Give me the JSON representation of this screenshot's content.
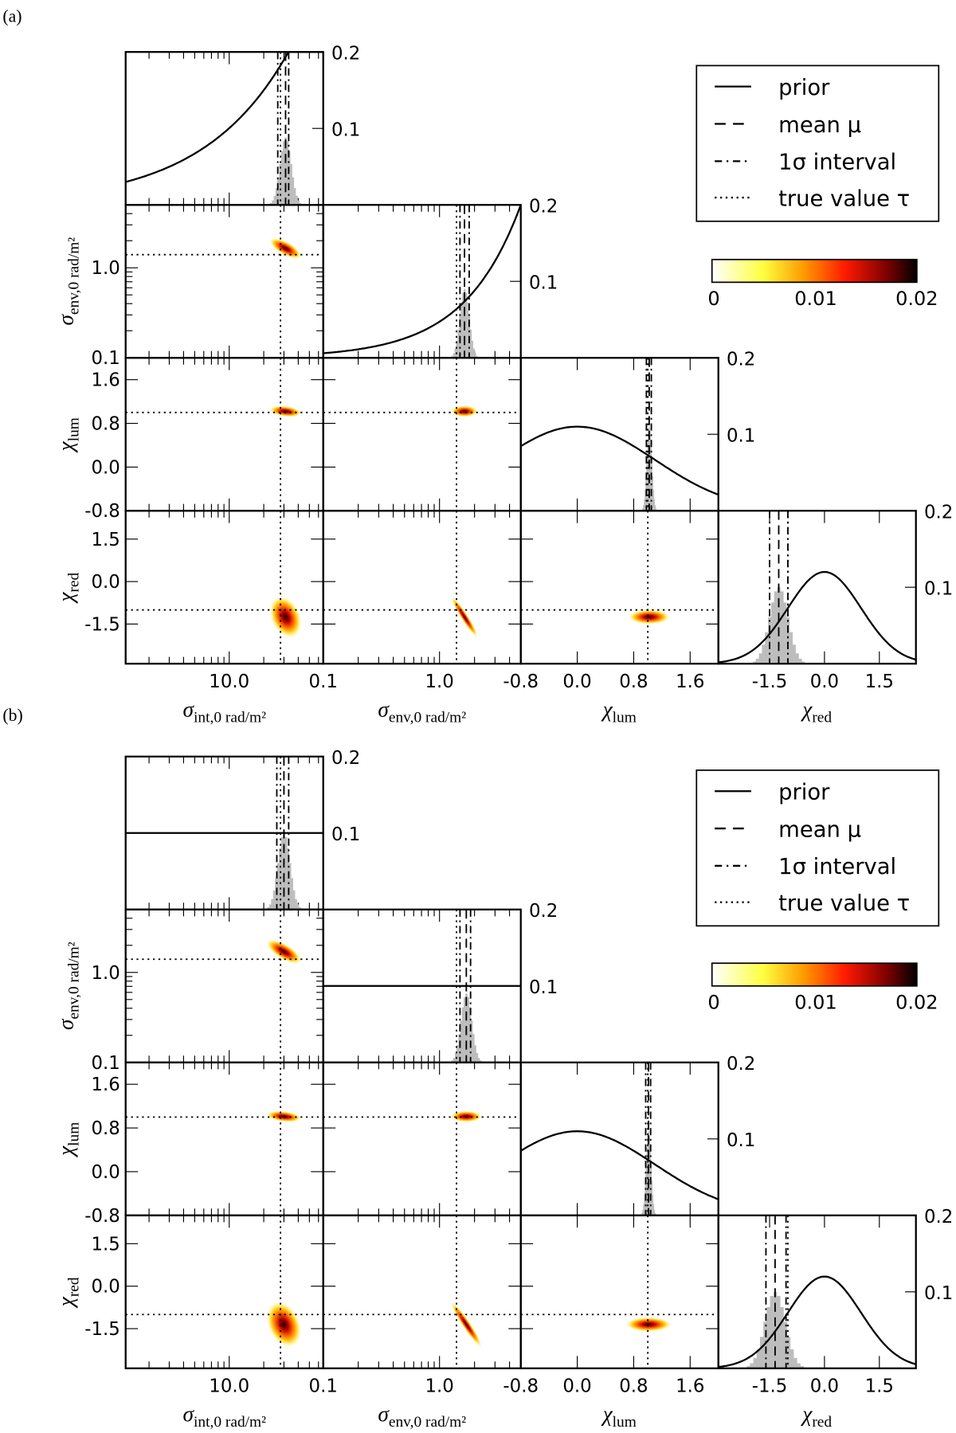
{
  "chart_data": [
    {
      "type": "corner",
      "panel_label": "(a)",
      "diag_ylim": [
        0,
        0.2
      ],
      "diag_yticks": [
        "0.1",
        "0.2"
      ],
      "legend": {
        "placement": "top-right",
        "entries": [
          {
            "label": "prior",
            "style": "solid"
          },
          {
            "label": "mean μ",
            "style": "dashed"
          },
          {
            "label": "1σ interval",
            "style": "dashdot"
          },
          {
            "label": "true value τ",
            "style": "dotted"
          }
        ]
      },
      "colorbar": {
        "range": [
          0,
          0.02
        ],
        "ticks": [
          "0",
          "0.01",
          "0.02"
        ],
        "colors": [
          "#ffffff",
          "#ffff40",
          "#ff9900",
          "#ff1a00",
          "#800000",
          "#000000"
        ]
      },
      "parameters": [
        {
          "label_main": "σ",
          "label_sub": "int,0 rad/m²",
          "scale": "log",
          "range": [
            1.25,
            66
          ],
          "ticks": [
            10
          ],
          "tick_labels": [
            "10.0"
          ],
          "true": 28,
          "mean": 31,
          "interval": [
            26.5,
            33
          ],
          "hist_peak": 0.088,
          "prior": {
            "type": "exponential",
            "y_at_min": 0.03,
            "y_at_max": 0.3
          }
        },
        {
          "label_main": "σ",
          "label_sub": "env,0 rad/m²",
          "scale": "log",
          "range": [
            0.1,
            5
          ],
          "ticks": [
            0.1,
            1.0
          ],
          "tick_labels": [
            "0.1",
            "1.0"
          ],
          "true": 1.4,
          "mean": 1.64,
          "interval": [
            1.5,
            1.8
          ],
          "hist_peak": 0.09,
          "prior": {
            "type": "exponential",
            "y_at_min": 0.006,
            "y_at_max": 0.2
          }
        },
        {
          "label_main": "χ",
          "label_sub": "lum",
          "scale": "linear",
          "range": [
            -0.8,
            2.0
          ],
          "ticks": [
            -0.8,
            0.0,
            0.8,
            1.6
          ],
          "tick_labels": [
            "-0.8",
            "0.0",
            "0.8",
            "1.6"
          ],
          "true": 1.0,
          "mean": 1.02,
          "interval": [
            0.98,
            1.05
          ],
          "hist_peak": 0.11,
          "prior": {
            "type": "gaussian",
            "mean": 0,
            "std": 1.1,
            "peak": 0.11
          }
        },
        {
          "label_main": "χ",
          "label_sub": "red",
          "scale": "linear",
          "range": [
            -2.9,
            2.5
          ],
          "ticks": [
            -1.5,
            0.0,
            1.5
          ],
          "tick_labels": [
            "-1.5",
            "0.0",
            "1.5"
          ],
          "true": -1.0,
          "mean": -1.25,
          "interval": [
            -1.5,
            -1.0
          ],
          "hist_peak": 0.1,
          "prior": {
            "type": "gaussian",
            "mean": 0,
            "std": 1.0,
            "peak": 0.12
          }
        }
      ],
      "correlations": [
        [
          1,
          -0.7,
          -0.3,
          -0.3
        ],
        [
          -0.7,
          1,
          0,
          -0.95
        ],
        [
          -0.3,
          0,
          1,
          0
        ],
        [
          -0.3,
          -0.95,
          0,
          1
        ]
      ]
    },
    {
      "type": "corner",
      "panel_label": "(b)",
      "diag_ylim": [
        0,
        0.2
      ],
      "diag_yticks": [
        "0.1",
        "0.2"
      ],
      "legend": {
        "placement": "top-right",
        "entries": [
          {
            "label": "prior",
            "style": "solid"
          },
          {
            "label": "mean μ",
            "style": "dashed"
          },
          {
            "label": "1σ interval",
            "style": "dashdot"
          },
          {
            "label": "true value τ",
            "style": "dotted"
          }
        ]
      },
      "colorbar": {
        "range": [
          0,
          0.02
        ],
        "ticks": [
          "0",
          "0.01",
          "0.02"
        ],
        "colors": [
          "#ffffff",
          "#ffff40",
          "#ff9900",
          "#ff1a00",
          "#800000",
          "#000000"
        ]
      },
      "parameters": [
        {
          "label_main": "σ",
          "label_sub": "int,0 rad/m²",
          "scale": "log",
          "range": [
            1.25,
            66
          ],
          "ticks": [
            10
          ],
          "tick_labels": [
            "10.0"
          ],
          "true": 28,
          "mean": 30,
          "interval": [
            26,
            33
          ],
          "hist_peak": 0.1,
          "prior": {
            "type": "flat",
            "value": 0.1
          }
        },
        {
          "label_main": "σ",
          "label_sub": "env,0 rad/m²",
          "scale": "log",
          "range": [
            0.1,
            5
          ],
          "ticks": [
            0.1,
            1.0
          ],
          "tick_labels": [
            "0.1",
            "1.0"
          ],
          "true": 1.4,
          "mean": 1.7,
          "interval": [
            1.5,
            1.85
          ],
          "hist_peak": 0.09,
          "prior": {
            "type": "flat",
            "value": 0.1
          }
        },
        {
          "label_main": "χ",
          "label_sub": "lum",
          "scale": "linear",
          "range": [
            -0.8,
            2.0
          ],
          "ticks": [
            -0.8,
            0.0,
            0.8,
            1.6
          ],
          "tick_labels": [
            "-0.8",
            "0.0",
            "0.8",
            "1.6"
          ],
          "true": 1.0,
          "mean": 1.01,
          "interval": [
            0.97,
            1.04
          ],
          "hist_peak": 0.11,
          "prior": {
            "type": "gaussian",
            "mean": 0,
            "std": 1.1,
            "peak": 0.11
          }
        },
        {
          "label_main": "χ",
          "label_sub": "red",
          "scale": "linear",
          "range": [
            -2.9,
            2.5
          ],
          "ticks": [
            -1.5,
            0.0,
            1.5
          ],
          "tick_labels": [
            "-1.5",
            "0.0",
            "1.5"
          ],
          "true": -1.0,
          "mean": -1.35,
          "interval": [
            -1.6,
            -1.05
          ],
          "hist_peak": 0.1,
          "prior": {
            "type": "gaussian",
            "mean": 0,
            "std": 1.0,
            "peak": 0.12
          }
        }
      ],
      "correlations": [
        [
          1,
          -0.7,
          -0.3,
          -0.3
        ],
        [
          -0.7,
          1,
          0,
          -0.95
        ],
        [
          -0.3,
          0,
          1,
          0
        ],
        [
          -0.3,
          -0.95,
          0,
          1
        ]
      ]
    }
  ]
}
